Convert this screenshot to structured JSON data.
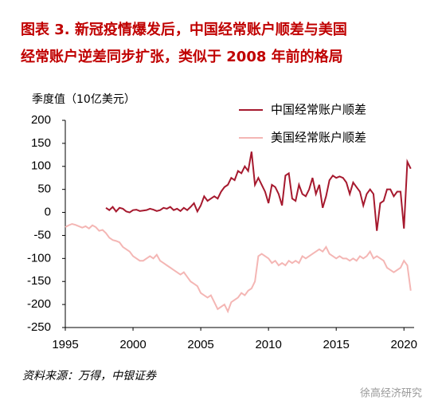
{
  "chart_data": {
    "type": "line",
    "title": [
      "图表 3.  新冠疫情爆发后，中国经常账户顺差与美国",
      "经常账户逆差同步扩张，类似于 2008 年前的格局"
    ],
    "y_label": "季度值（10亿美元）",
    "source": "资料来源：万得，中银证券",
    "watermark": "徐高经济研究",
    "xlim": [
      1995,
      2020.75
    ],
    "xticks": [
      1995,
      2000,
      2005,
      2010,
      2015,
      2020
    ],
    "ylim": [
      -250,
      200
    ],
    "yticks": [
      -250,
      -200,
      -150,
      -100,
      -50,
      0,
      50,
      100,
      150,
      200
    ],
    "grid": false,
    "x": [
      1995,
      1995.25,
      1995.5,
      1995.75,
      1996,
      1996.25,
      1996.5,
      1996.75,
      1997,
      1997.25,
      1997.5,
      1997.75,
      1998,
      1998.25,
      1998.5,
      1998.75,
      1999,
      1999.25,
      1999.5,
      1999.75,
      2000,
      2000.25,
      2000.5,
      2000.75,
      2001,
      2001.25,
      2001.5,
      2001.75,
      2002,
      2002.25,
      2002.5,
      2002.75,
      2003,
      2003.25,
      2003.5,
      2003.75,
      2004,
      2004.25,
      2004.5,
      2004.75,
      2005,
      2005.25,
      2005.5,
      2005.75,
      2006,
      2006.25,
      2006.5,
      2006.75,
      2007,
      2007.25,
      2007.5,
      2007.75,
      2008,
      2008.25,
      2008.5,
      2008.75,
      2009,
      2009.25,
      2009.5,
      2009.75,
      2010,
      2010.25,
      2010.5,
      2010.75,
      2011,
      2011.25,
      2011.5,
      2011.75,
      2012,
      2012.25,
      2012.5,
      2012.75,
      2013,
      2013.25,
      2013.5,
      2013.75,
      2014,
      2014.25,
      2014.5,
      2014.75,
      2015,
      2015.25,
      2015.5,
      2015.75,
      2016,
      2016.25,
      2016.5,
      2016.75,
      2017,
      2017.25,
      2017.5,
      2017.75,
      2018,
      2018.25,
      2018.5,
      2018.75,
      2019,
      2019.25,
      2019.5,
      2019.75,
      2020,
      2020.25,
      2020.5,
      2020.75
    ],
    "series": [
      {
        "name": "中国经常账户顺差",
        "color": "#a6192e",
        "values": [
          null,
          null,
          null,
          null,
          null,
          null,
          null,
          null,
          null,
          null,
          null,
          null,
          10,
          5,
          12,
          2,
          10,
          8,
          2,
          0,
          5,
          6,
          3,
          4,
          5,
          8,
          6,
          3,
          5,
          10,
          8,
          12,
          5,
          8,
          3,
          10,
          5,
          12,
          20,
          2,
          15,
          35,
          25,
          30,
          35,
          30,
          45,
          55,
          60,
          75,
          70,
          90,
          85,
          100,
          90,
          132,
          60,
          75,
          60,
          45,
          20,
          60,
          55,
          40,
          15,
          80,
          85,
          30,
          25,
          60,
          40,
          35,
          50,
          75,
          40,
          60,
          10,
          35,
          70,
          80,
          75,
          78,
          75,
          65,
          40,
          65,
          55,
          45,
          15,
          40,
          50,
          40,
          -40,
          20,
          25,
          50,
          50,
          35,
          45,
          45,
          -35,
          110,
          95,
          null
        ]
      },
      {
        "name": "美国经常账户顺差",
        "color": "#f4b6b4",
        "values": [
          -32,
          -28,
          -25,
          -27,
          -30,
          -33,
          -30,
          -35,
          -28,
          -32,
          -40,
          -38,
          -45,
          -55,
          -60,
          -62,
          -65,
          -75,
          -80,
          -85,
          -95,
          -100,
          -105,
          -105,
          -100,
          -95,
          -100,
          -92,
          -105,
          -110,
          -115,
          -120,
          -125,
          -130,
          -135,
          -130,
          -140,
          -150,
          -155,
          -160,
          -175,
          -180,
          -185,
          -180,
          -195,
          -210,
          -205,
          -200,
          -215,
          -195,
          -190,
          -185,
          -175,
          -180,
          -170,
          -165,
          -150,
          -95,
          -90,
          -95,
          -100,
          -110,
          -105,
          -115,
          -110,
          -115,
          -105,
          -110,
          -105,
          -110,
          -95,
          -100,
          -95,
          -90,
          -85,
          -80,
          -85,
          -75,
          -90,
          -95,
          -100,
          -95,
          -100,
          -100,
          -105,
          -100,
          -105,
          -95,
          -100,
          -95,
          -85,
          -100,
          -95,
          -100,
          -105,
          -120,
          -125,
          -130,
          -125,
          -120,
          -105,
          -115,
          -170,
          null
        ]
      }
    ]
  }
}
